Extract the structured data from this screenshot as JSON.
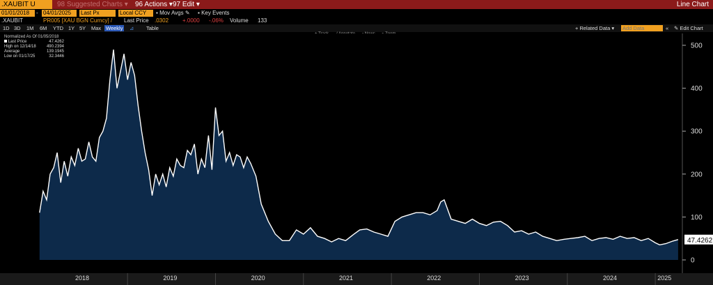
{
  "header": {
    "ticker": ".XAUBIT U Index",
    "suggested": "Suggested Charts",
    "actions": "Actions",
    "edit": "Edit",
    "view": "Line Chart"
  },
  "controls": {
    "start_date": "01/01/2018",
    "end_date": "04/01/2025",
    "field": "Last Px",
    "currency": "Local CCY",
    "mov_avgs": "Mov Avgs",
    "key_events": "Key Events"
  },
  "security_line": {
    "name": ".XAUBIT",
    "desc": "PR005 [XAU BGN Curncy] /",
    "last_label": "Last Price",
    "last_value": ".0302",
    "change": "+.0000",
    "pct": "-.06%",
    "volume_label": "Volume",
    "volume_value": "133"
  },
  "toolbar": {
    "periods": [
      "1D",
      "3D",
      "1M",
      "6M",
      "YTD",
      "1Y",
      "5Y",
      "Max"
    ],
    "selected_period": "Weekly",
    "table": "Table",
    "related": "Related Data",
    "add_data": "Add Data",
    "edit_chart": "Edit Chart",
    "tools": [
      "Track",
      "Annotate",
      "News",
      "Zoom"
    ]
  },
  "legend": {
    "title": "Normalized As Of 01/05/2018",
    "rows": [
      {
        "label": "Last Price",
        "value": "47.4262"
      },
      {
        "label": "High on 12/14/18",
        "value": "490.2394"
      },
      {
        "label": "Average",
        "value": "139.1945"
      },
      {
        "label": "Low on 01/17/25",
        "value": "32.3446"
      }
    ]
  },
  "chart_data": {
    "type": "area",
    "title": "",
    "xlabel": "",
    "ylabel": "",
    "ylim": [
      0,
      520
    ],
    "yticks": [
      0,
      100,
      200,
      300,
      400,
      500
    ],
    "x_labels": [
      "2018",
      "2019",
      "2020",
      "2021",
      "2022",
      "2023",
      "2024",
      "2025"
    ],
    "last_value_label": "47.4262",
    "colors": {
      "line": "#ffffff",
      "fill": "#0d2a4a"
    },
    "series": [
      {
        "x": [
          2018.0,
          2018.04,
          2018.08,
          2018.12,
          2018.16,
          2018.2,
          2018.24,
          2018.28,
          2018.32,
          2018.36,
          2018.4,
          2018.44,
          2018.48,
          2018.52,
          2018.56,
          2018.6,
          2018.64,
          2018.68,
          2018.72,
          2018.76,
          2018.8,
          2018.84,
          2018.88,
          2018.92,
          2018.96,
          2019.0,
          2019.04,
          2019.08,
          2019.12,
          2019.16,
          2019.2,
          2019.24,
          2019.28,
          2019.32,
          2019.36,
          2019.4,
          2019.44,
          2019.48,
          2019.52,
          2019.56,
          2019.6,
          2019.64,
          2019.68,
          2019.72,
          2019.76,
          2019.8,
          2019.84,
          2019.88,
          2019.92,
          2019.96,
          2020.0,
          2020.04,
          2020.08,
          2020.12,
          2020.16,
          2020.2,
          2020.24,
          2020.28,
          2020.32,
          2020.36,
          2020.4,
          2020.46,
          2020.52,
          2020.6,
          2020.68,
          2020.76,
          2020.84,
          2020.92,
          2021.0,
          2021.08,
          2021.16,
          2021.24,
          2021.32,
          2021.4,
          2021.48,
          2021.56,
          2021.64,
          2021.72,
          2021.8,
          2021.88,
          2021.96,
          2022.04,
          2022.12,
          2022.2,
          2022.28,
          2022.36,
          2022.44,
          2022.52,
          2022.56,
          2022.6,
          2022.68,
          2022.76,
          2022.84,
          2022.92,
          2023.0,
          2023.08,
          2023.16,
          2023.24,
          2023.32,
          2023.4,
          2023.48,
          2023.56,
          2023.64,
          2023.72,
          2023.8,
          2023.88,
          2023.96,
          2024.04,
          2024.12,
          2024.2,
          2024.28,
          2024.36,
          2024.44,
          2024.52,
          2024.6,
          2024.68,
          2024.76,
          2024.84,
          2024.92,
          2025.0,
          2025.05,
          2025.12,
          2025.2,
          2025.26
        ],
        "values": [
          110,
          160,
          140,
          200,
          215,
          250,
          180,
          230,
          195,
          240,
          220,
          260,
          230,
          235,
          275,
          240,
          230,
          285,
          300,
          330,
          420,
          490,
          400,
          440,
          480,
          420,
          460,
          430,
          360,
          300,
          250,
          210,
          150,
          200,
          175,
          200,
          170,
          215,
          195,
          235,
          220,
          215,
          255,
          245,
          270,
          200,
          235,
          215,
          290,
          210,
          355,
          290,
          300,
          230,
          250,
          220,
          245,
          240,
          215,
          240,
          225,
          195,
          130,
          90,
          60,
          45,
          45,
          70,
          60,
          75,
          55,
          50,
          42,
          50,
          45,
          58,
          70,
          72,
          65,
          60,
          55,
          90,
          100,
          105,
          110,
          110,
          105,
          115,
          135,
          140,
          95,
          90,
          85,
          95,
          85,
          80,
          88,
          90,
          80,
          65,
          68,
          60,
          65,
          55,
          50,
          45,
          48,
          50,
          52,
          55,
          45,
          50,
          52,
          48,
          55,
          50,
          52,
          45,
          50,
          40,
          35,
          38,
          44,
          47.4262
        ]
      }
    ]
  }
}
